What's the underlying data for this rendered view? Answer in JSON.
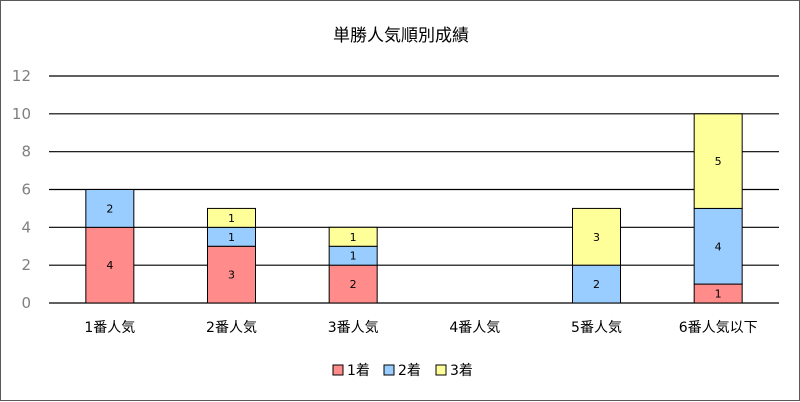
{
  "chart_data": {
    "type": "bar",
    "stacked": true,
    "title": "単勝人気順別成績",
    "categories": [
      "1番人気",
      "2番人気",
      "3番人気",
      "4番人気",
      "5番人気",
      "6番人気以下"
    ],
    "series": [
      {
        "name": "1着",
        "values": [
          4,
          3,
          2,
          0,
          0,
          1
        ],
        "color": "#ff8b8b"
      },
      {
        "name": "2着",
        "values": [
          2,
          1,
          1,
          0,
          2,
          4
        ],
        "color": "#99ccff"
      },
      {
        "name": "3着",
        "values": [
          0,
          1,
          1,
          0,
          3,
          5
        ],
        "color": "#ffff99"
      }
    ],
    "ylim": [
      0,
      12
    ],
    "yticks": [
      0,
      2,
      4,
      6,
      8,
      10,
      12
    ],
    "grid": true,
    "legend_position": "bottom"
  }
}
